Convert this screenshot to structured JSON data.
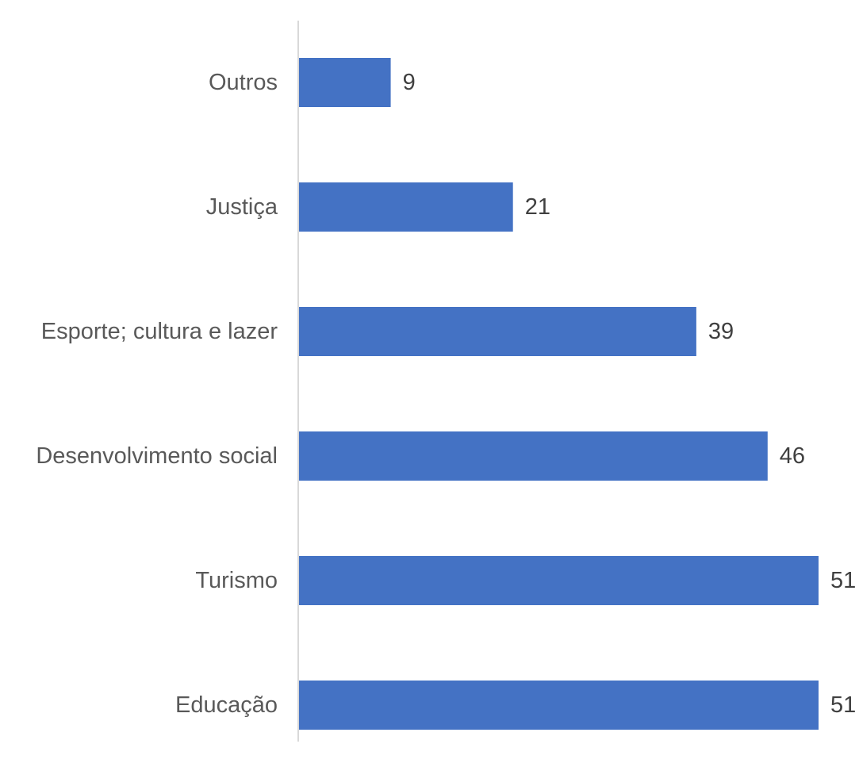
{
  "chart_data": {
    "type": "bar",
    "orientation": "horizontal",
    "categories": [
      "Outros",
      "Justiça",
      "Esporte; cultura e lazer",
      "Desenvolvimento social",
      "Turismo",
      "Educação"
    ],
    "values": [
      9,
      21,
      39,
      46,
      51,
      51
    ],
    "data_labels": [
      "9",
      "21",
      "39",
      "46",
      "51",
      "51"
    ],
    "title": "",
    "xlabel": "",
    "ylabel": "",
    "xlim": [
      0,
      51
    ],
    "grid": false,
    "legend": "none",
    "colors": {
      "bar": "#4472C4",
      "axis_line": "#D9D9D9",
      "category_text": "#595959",
      "value_text": "#404040"
    }
  }
}
